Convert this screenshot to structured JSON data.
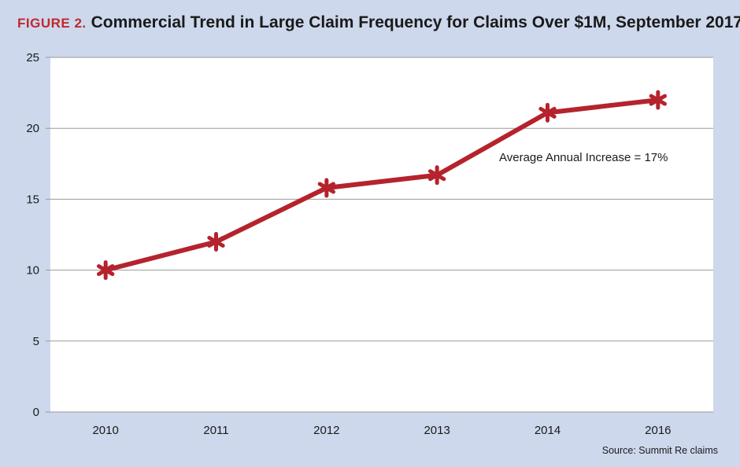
{
  "header": {
    "figure_label": "FIGURE 2.",
    "title": "Commercial Trend in Large Claim Frequency for Claims Over $1M, September 2017"
  },
  "source": "Source: Summit Re claims",
  "colors": {
    "line": "#b5232d",
    "title_accent": "#c0282e",
    "background": "#cdd8ec",
    "plot_bg": "#ffffff",
    "grid": "#9a9a9a"
  },
  "chart_data": {
    "type": "line",
    "categories": [
      "2010",
      "2011",
      "2012",
      "2013",
      "2014",
      "2016"
    ],
    "series": [
      {
        "values": [
          10,
          12,
          15.8,
          16.7,
          21.1,
          22
        ]
      }
    ],
    "ylim": [
      0,
      25
    ],
    "yticks": [
      0,
      5,
      10,
      15,
      20,
      25
    ],
    "grid": true,
    "marker": "asterisk",
    "annotations": [
      {
        "text": "Average Annual Increase = 17%"
      }
    ]
  }
}
